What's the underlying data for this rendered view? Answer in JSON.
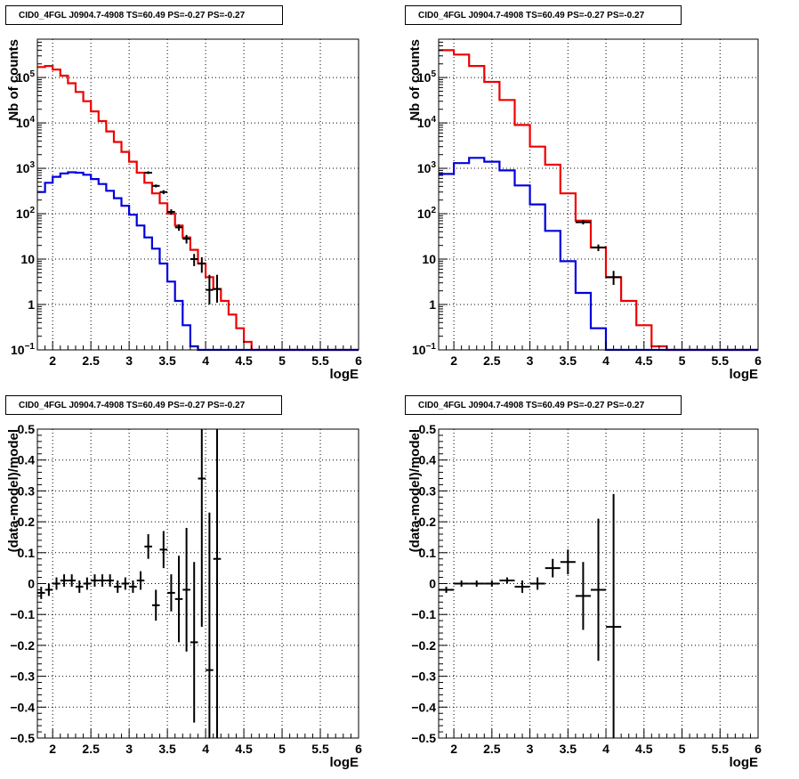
{
  "figure_titles": [
    "CID0_4FGL J0904.7-4908 TS=60.49 PS=-0.27 PS=-0.27",
    "CID0_4FGL J0904.7-4908 TS=60.49 PS=-0.27 PS=-0.27",
    "CID0_4FGL J0904.7-4908 TS=60.49 PS=-0.27 PS=-0.27",
    "CID0_4FGL J0904.7-4908 TS=60.49 PS=-0.27 PS=-0.27"
  ],
  "colors": {
    "total_model": "#ee0000",
    "source_model": "#0000dd",
    "data": "#000000",
    "grid": "#000000"
  },
  "chart_data": [
    {
      "type": "line",
      "title": "CID0_4FGL J0904.7-4908 TS=60.49 PS=-0.27 PS=-0.27",
      "xlabel": "logE",
      "ylabel": "Nb of counts",
      "xlim": [
        1.8,
        6.0
      ],
      "ylim": [
        0.1,
        700000
      ],
      "yscale": "log",
      "grid": true,
      "x_ticks": [
        "2",
        "2.5",
        "3",
        "3.5",
        "4",
        "4.5",
        "5",
        "5.5",
        "6"
      ],
      "y_ticks": [
        "10^-1",
        "1",
        "10",
        "10^2",
        "10^3",
        "10^4",
        "10^5"
      ],
      "bin_edges": [
        1.8,
        1.9,
        2.0,
        2.1,
        2.2,
        2.3,
        2.4,
        2.5,
        2.6,
        2.7,
        2.8,
        2.9,
        3.0,
        3.1,
        3.2,
        3.3,
        3.4,
        3.5,
        3.6,
        3.7,
        3.8,
        3.9,
        4.0,
        4.1,
        4.2,
        4.3,
        4.4,
        4.5,
        4.6,
        4.7,
        4.8,
        4.9,
        5.0,
        5.1,
        5.2,
        5.3,
        5.4,
        5.5,
        5.6,
        5.7,
        5.8,
        5.9,
        6.0
      ],
      "series": [
        {
          "name": "",
          "kind": "step",
          "color": "#ee0000",
          "values": [
            170000,
            180000,
            150000,
            110000,
            75000,
            48000,
            30000,
            18000,
            11000,
            6500,
            3800,
            2300,
            1400,
            800,
            480,
            280,
            170,
            100,
            55,
            30,
            16,
            8,
            4,
            2.2,
            1.2,
            0.6,
            0.3,
            0.15,
            0.08,
            0.05,
            0.05,
            0.05,
            0.05,
            0.05,
            0.05,
            0.05,
            0.05,
            0.05,
            0.05,
            0.05,
            0.05,
            0.05
          ]
        },
        {
          "name": "",
          "kind": "step",
          "color": "#0000dd",
          "values": [
            300,
            480,
            650,
            770,
            820,
            800,
            720,
            580,
            450,
            320,
            220,
            150,
            95,
            55,
            30,
            17,
            8,
            3.2,
            1.2,
            0.35,
            0.12,
            0.05,
            0.05,
            0.05,
            0.05,
            0.05,
            0.05,
            0.05,
            0.05,
            0.05,
            0.05,
            0.05,
            0.05,
            0.05,
            0.05,
            0.05,
            0.05,
            0.05,
            0.05,
            0.05,
            0.05,
            0.05
          ]
        },
        {
          "name": "",
          "kind": "points",
          "color": "#000000",
          "x": [
            3.25,
            3.35,
            3.45,
            3.55,
            3.65,
            3.75,
            3.85,
            3.95,
            4.05,
            4.15
          ],
          "y": [
            800,
            410,
            300,
            110,
            50,
            28,
            10,
            8,
            2.1,
            2.2
          ],
          "yerr_low": [
            750,
            380,
            270,
            95,
            42,
            22,
            7,
            5,
            1.0,
            1.1
          ],
          "yerr_high": [
            860,
            440,
            330,
            125,
            58,
            34,
            13,
            11,
            4.5,
            4.5
          ],
          "xerr": 0.05
        }
      ]
    },
    {
      "type": "line",
      "title": "CID0_4FGL J0904.7-4908 TS=60.49 PS=-0.27 PS=-0.27",
      "xlabel": "logE",
      "ylabel": "Nb of counts",
      "xlim": [
        1.8,
        6.0
      ],
      "ylim": [
        0.1,
        700000
      ],
      "yscale": "log",
      "grid": true,
      "x_ticks": [
        "2",
        "2.5",
        "3",
        "3.5",
        "4",
        "4.5",
        "5",
        "5.5",
        "6"
      ],
      "y_ticks": [
        "10^-1",
        "1",
        "10",
        "10^2",
        "10^3",
        "10^4",
        "10^5"
      ],
      "bin_edges": [
        1.8,
        2.0,
        2.2,
        2.4,
        2.6,
        2.8,
        3.0,
        3.2,
        3.4,
        3.6,
        3.8,
        4.0,
        4.2,
        4.4,
        4.6,
        4.8,
        5.0,
        5.2,
        5.4,
        5.6,
        5.8,
        6.0
      ],
      "series": [
        {
          "name": "",
          "kind": "step",
          "color": "#ee0000",
          "values": [
            400000,
            320000,
            180000,
            80000,
            32000,
            9000,
            3000,
            1200,
            280,
            70,
            18,
            4,
            1.2,
            0.35,
            0.12,
            0.1,
            0.05,
            0.05,
            0.05,
            0.05,
            0.05
          ]
        },
        {
          "name": "",
          "kind": "step",
          "color": "#0000dd",
          "values": [
            750,
            1300,
            1700,
            1400,
            900,
            420,
            160,
            42,
            9,
            1.8,
            0.3,
            0.05,
            0.05,
            0.05,
            0.05,
            0.05,
            0.05,
            0.05,
            0.05,
            0.05,
            0.05
          ]
        },
        {
          "name": "",
          "kind": "points",
          "color": "#000000",
          "x": [
            3.7,
            3.9,
            4.1
          ],
          "y": [
            65,
            18,
            4
          ],
          "yerr_low": [
            58,
            15,
            2.7
          ],
          "yerr_high": [
            72,
            21,
            5.5
          ],
          "xerr": 0.1
        }
      ]
    },
    {
      "type": "scatter",
      "title": "CID0_4FGL J0904.7-4908 TS=60.49 PS=-0.27 PS=-0.27",
      "xlabel": "logE",
      "ylabel": "(data-model)/model",
      "xlim": [
        1.8,
        6.0
      ],
      "ylim": [
        -0.5,
        0.5
      ],
      "grid": true,
      "x_ticks": [
        "2",
        "2.5",
        "3",
        "3.5",
        "4",
        "4.5",
        "5",
        "5.5",
        "6"
      ],
      "y_ticks": [
        "-0.5",
        "-0.4",
        "-0.3",
        "-0.2",
        "-0.1",
        "0",
        "0.1",
        "0.2",
        "0.3",
        "0.4",
        "0.5"
      ],
      "series": [
        {
          "name": "",
          "color": "#000000",
          "xerr": 0.05,
          "x": [
            1.85,
            1.95,
            2.05,
            2.15,
            2.25,
            2.35,
            2.45,
            2.55,
            2.65,
            2.75,
            2.85,
            2.95,
            3.05,
            3.15,
            3.25,
            3.35,
            3.45,
            3.55,
            3.65,
            3.75,
            3.85,
            3.95,
            4.05,
            4.15
          ],
          "y": [
            -0.03,
            -0.02,
            0.0,
            0.01,
            0.01,
            -0.01,
            0.0,
            0.01,
            0.01,
            0.01,
            -0.01,
            0.0,
            -0.01,
            0.01,
            0.12,
            -0.07,
            0.11,
            -0.03,
            -0.05,
            -0.02,
            -0.19,
            0.34,
            -0.28,
            0.08
          ],
          "yerr": [
            0.02,
            0.02,
            0.02,
            0.02,
            0.02,
            0.02,
            0.02,
            0.02,
            0.02,
            0.02,
            0.02,
            0.02,
            0.02,
            0.03,
            0.04,
            0.05,
            0.06,
            0.06,
            0.14,
            0.2,
            0.26,
            0.48,
            0.51,
            0.6
          ]
        }
      ]
    },
    {
      "type": "scatter",
      "title": "CID0_4FGL J0904.7-4908 TS=60.49 PS=-0.27 PS=-0.27",
      "xlabel": "logE",
      "ylabel": "(data-model)/model",
      "xlim": [
        1.8,
        6.0
      ],
      "ylim": [
        -0.5,
        0.5
      ],
      "grid": true,
      "x_ticks": [
        "2",
        "2.5",
        "3",
        "3.5",
        "4",
        "4.5",
        "5",
        "5.5",
        "6"
      ],
      "y_ticks": [
        "-0.5",
        "-0.4",
        "-0.3",
        "-0.2",
        "-0.1",
        "0",
        "0.1",
        "0.2",
        "0.3",
        "0.4",
        "0.5"
      ],
      "series": [
        {
          "name": "",
          "color": "#000000",
          "xerr": 0.1,
          "x": [
            1.9,
            2.1,
            2.3,
            2.5,
            2.7,
            2.9,
            3.1,
            3.3,
            3.5,
            3.7,
            3.9,
            4.1
          ],
          "y": [
            -0.02,
            0.0,
            0.0,
            0.0,
            0.01,
            -0.01,
            0.0,
            0.05,
            0.07,
            -0.04,
            -0.02,
            -0.14
          ],
          "yerr": [
            0.01,
            0.01,
            0.01,
            0.01,
            0.01,
            0.02,
            0.02,
            0.03,
            0.04,
            0.11,
            0.23,
            0.43
          ]
        }
      ]
    }
  ]
}
